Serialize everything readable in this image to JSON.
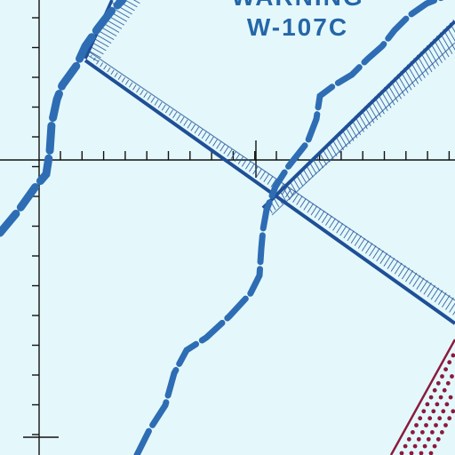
{
  "map": {
    "area_label_line1": "WARNING",
    "area_label_line2": "W-107C",
    "colors": {
      "water": "#e4f8fb",
      "boundary": "#1f4f97",
      "route": "#2e6db4",
      "grid": "#111111",
      "dotted_boundary": "#8b1a3c"
    }
  }
}
